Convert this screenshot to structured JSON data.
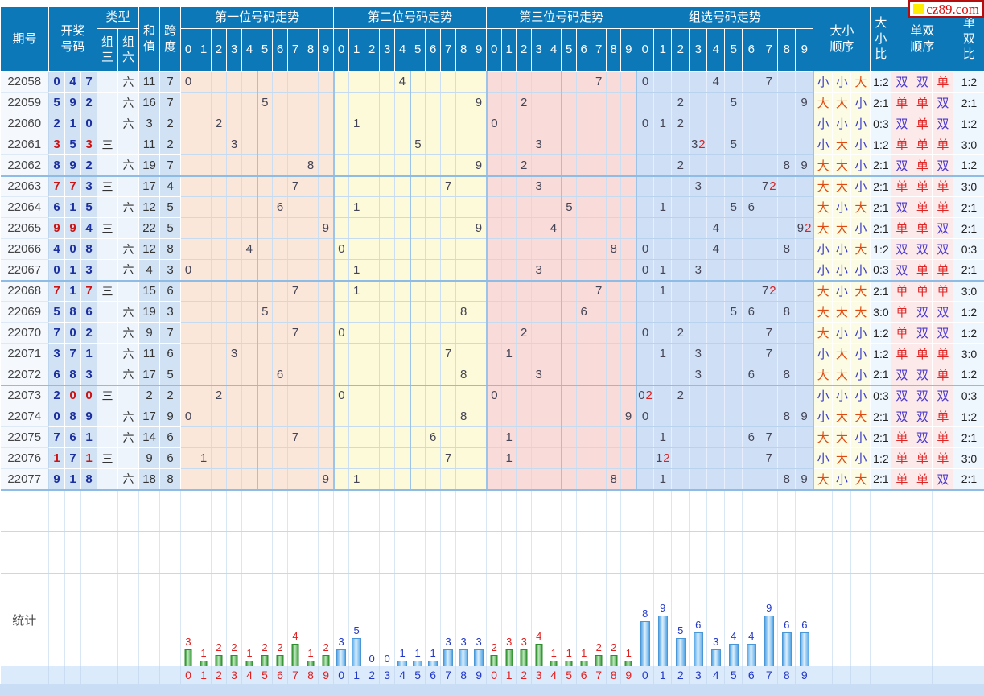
{
  "site": {
    "logo_text": "cz89.com"
  },
  "header": {
    "issue": "期号",
    "numbers": [
      "开奖",
      "号码"
    ],
    "type": "类型",
    "type_sub": [
      [
        "组",
        "三"
      ],
      [
        "组",
        "六"
      ]
    ],
    "sum": [
      "和",
      "值"
    ],
    "span": [
      "跨",
      "度"
    ],
    "sections": [
      "第一位号码走势",
      "第二位号码走势",
      "第三位号码走势",
      "组选号码走势"
    ],
    "digits": [
      "0",
      "1",
      "2",
      "3",
      "4",
      "5",
      "6",
      "7",
      "8",
      "9"
    ],
    "size_order": [
      "大小",
      "顺序"
    ],
    "size_ratio": [
      "大",
      "小",
      "比"
    ],
    "parity_order": [
      "单双",
      "顺序"
    ],
    "parity_ratio": [
      "单",
      "双",
      "比"
    ]
  },
  "stats_label": "统计",
  "rows": [
    {
      "issue": "22058",
      "n": [
        0,
        4,
        7
      ],
      "type": "六",
      "sum": 11,
      "span": 7,
      "size": [
        "小",
        "小",
        "大"
      ],
      "size_ratio": "1:2",
      "parity": [
        "双",
        "双",
        "单"
      ],
      "parity_ratio": "1:2"
    },
    {
      "issue": "22059",
      "n": [
        5,
        9,
        2
      ],
      "type": "六",
      "sum": 16,
      "span": 7,
      "size": [
        "大",
        "大",
        "小"
      ],
      "size_ratio": "2:1",
      "parity": [
        "单",
        "单",
        "双"
      ],
      "parity_ratio": "2:1"
    },
    {
      "issue": "22060",
      "n": [
        2,
        1,
        0
      ],
      "type": "六",
      "sum": 3,
      "span": 2,
      "size": [
        "小",
        "小",
        "小"
      ],
      "size_ratio": "0:3",
      "parity": [
        "双",
        "单",
        "双"
      ],
      "parity_ratio": "1:2"
    },
    {
      "issue": "22061",
      "n": [
        3,
        5,
        3
      ],
      "type": "三",
      "sum": 11,
      "span": 2,
      "size": [
        "小",
        "大",
        "小"
      ],
      "size_ratio": "1:2",
      "parity": [
        "单",
        "单",
        "单"
      ],
      "parity_ratio": "3:0"
    },
    {
      "issue": "22062",
      "n": [
        8,
        9,
        2
      ],
      "type": "六",
      "sum": 19,
      "span": 7,
      "size": [
        "大",
        "大",
        "小"
      ],
      "size_ratio": "2:1",
      "parity": [
        "双",
        "单",
        "双"
      ],
      "parity_ratio": "1:2"
    },
    {
      "issue": "22063",
      "n": [
        7,
        7,
        3
      ],
      "type": "三",
      "sum": 17,
      "span": 4,
      "size": [
        "大",
        "大",
        "小"
      ],
      "size_ratio": "2:1",
      "parity": [
        "单",
        "单",
        "单"
      ],
      "parity_ratio": "3:0"
    },
    {
      "issue": "22064",
      "n": [
        6,
        1,
        5
      ],
      "type": "六",
      "sum": 12,
      "span": 5,
      "size": [
        "大",
        "小",
        "大"
      ],
      "size_ratio": "2:1",
      "parity": [
        "双",
        "单",
        "单"
      ],
      "parity_ratio": "2:1"
    },
    {
      "issue": "22065",
      "n": [
        9,
        9,
        4
      ],
      "type": "三",
      "sum": 22,
      "span": 5,
      "size": [
        "大",
        "大",
        "小"
      ],
      "size_ratio": "2:1",
      "parity": [
        "单",
        "单",
        "双"
      ],
      "parity_ratio": "2:1"
    },
    {
      "issue": "22066",
      "n": [
        4,
        0,
        8
      ],
      "type": "六",
      "sum": 12,
      "span": 8,
      "size": [
        "小",
        "小",
        "大"
      ],
      "size_ratio": "1:2",
      "parity": [
        "双",
        "双",
        "双"
      ],
      "parity_ratio": "0:3"
    },
    {
      "issue": "22067",
      "n": [
        0,
        1,
        3
      ],
      "type": "六",
      "sum": 4,
      "span": 3,
      "size": [
        "小",
        "小",
        "小"
      ],
      "size_ratio": "0:3",
      "parity": [
        "双",
        "单",
        "单"
      ],
      "parity_ratio": "2:1"
    },
    {
      "issue": "22068",
      "n": [
        7,
        1,
        7
      ],
      "type": "三",
      "sum": 15,
      "span": 6,
      "size": [
        "大",
        "小",
        "大"
      ],
      "size_ratio": "2:1",
      "parity": [
        "单",
        "单",
        "单"
      ],
      "parity_ratio": "3:0"
    },
    {
      "issue": "22069",
      "n": [
        5,
        8,
        6
      ],
      "type": "六",
      "sum": 19,
      "span": 3,
      "size": [
        "大",
        "大",
        "大"
      ],
      "size_ratio": "3:0",
      "parity": [
        "单",
        "双",
        "双"
      ],
      "parity_ratio": "1:2"
    },
    {
      "issue": "22070",
      "n": [
        7,
        0,
        2
      ],
      "type": "六",
      "sum": 9,
      "span": 7,
      "size": [
        "大",
        "小",
        "小"
      ],
      "size_ratio": "1:2",
      "parity": [
        "单",
        "双",
        "双"
      ],
      "parity_ratio": "1:2"
    },
    {
      "issue": "22071",
      "n": [
        3,
        7,
        1
      ],
      "type": "六",
      "sum": 11,
      "span": 6,
      "size": [
        "小",
        "大",
        "小"
      ],
      "size_ratio": "1:2",
      "parity": [
        "单",
        "单",
        "单"
      ],
      "parity_ratio": "3:0"
    },
    {
      "issue": "22072",
      "n": [
        6,
        8,
        3
      ],
      "type": "六",
      "sum": 17,
      "span": 5,
      "size": [
        "大",
        "大",
        "小"
      ],
      "size_ratio": "2:1",
      "parity": [
        "双",
        "双",
        "单"
      ],
      "parity_ratio": "1:2"
    },
    {
      "issue": "22073",
      "n": [
        2,
        0,
        0
      ],
      "type": "三",
      "sum": 2,
      "span": 2,
      "size": [
        "小",
        "小",
        "小"
      ],
      "size_ratio": "0:3",
      "parity": [
        "双",
        "双",
        "双"
      ],
      "parity_ratio": "0:3"
    },
    {
      "issue": "22074",
      "n": [
        0,
        8,
        9
      ],
      "type": "六",
      "sum": 17,
      "span": 9,
      "size": [
        "小",
        "大",
        "大"
      ],
      "size_ratio": "2:1",
      "parity": [
        "双",
        "双",
        "单"
      ],
      "parity_ratio": "1:2"
    },
    {
      "issue": "22075",
      "n": [
        7,
        6,
        1
      ],
      "type": "六",
      "sum": 14,
      "span": 6,
      "size": [
        "大",
        "大",
        "小"
      ],
      "size_ratio": "2:1",
      "parity": [
        "单",
        "双",
        "单"
      ],
      "parity_ratio": "2:1"
    },
    {
      "issue": "22076",
      "n": [
        1,
        7,
        1
      ],
      "type": "三",
      "sum": 9,
      "span": 6,
      "size": [
        "小",
        "大",
        "小"
      ],
      "size_ratio": "1:2",
      "parity": [
        "单",
        "单",
        "单"
      ],
      "parity_ratio": "3:0"
    },
    {
      "issue": "22077",
      "n": [
        9,
        1,
        8
      ],
      "type": "六",
      "sum": 18,
      "span": 8,
      "size": [
        "大",
        "小",
        "大"
      ],
      "size_ratio": "2:1",
      "parity": [
        "单",
        "单",
        "双"
      ],
      "parity_ratio": "2:1"
    }
  ],
  "chart_data": [
    {
      "type": "bar",
      "title": "第一位号码走势 统计",
      "categories": [
        "0",
        "1",
        "2",
        "3",
        "4",
        "5",
        "6",
        "7",
        "8",
        "9"
      ],
      "values": [
        3,
        1,
        2,
        2,
        1,
        2,
        2,
        4,
        1,
        2
      ],
      "bar_color": "#3d9e3d",
      "label_color": "#e01f1f",
      "ylim": [
        0,
        9
      ],
      "grid": false
    },
    {
      "type": "bar",
      "title": "第二位号码走势 统计",
      "categories": [
        "0",
        "1",
        "2",
        "3",
        "4",
        "5",
        "6",
        "7",
        "8",
        "9"
      ],
      "values": [
        3,
        5,
        0,
        0,
        1,
        1,
        1,
        3,
        3,
        3
      ],
      "bar_color": "#58a8e8",
      "label_color": "#2238c8",
      "ylim": [
        0,
        9
      ],
      "grid": false
    },
    {
      "type": "bar",
      "title": "第三位号码走势 统计",
      "categories": [
        "0",
        "1",
        "2",
        "3",
        "4",
        "5",
        "6",
        "7",
        "8",
        "9"
      ],
      "values": [
        2,
        3,
        3,
        4,
        1,
        1,
        1,
        2,
        2,
        1
      ],
      "bar_color": "#3d9e3d",
      "label_color": "#e01f1f",
      "ylim": [
        0,
        9
      ],
      "grid": false
    },
    {
      "type": "bar",
      "title": "组选号码走势 统计",
      "categories": [
        "0",
        "1",
        "2",
        "3",
        "4",
        "5",
        "6",
        "7",
        "8",
        "9"
      ],
      "values": [
        8,
        9,
        5,
        6,
        3,
        4,
        4,
        9,
        6,
        6
      ],
      "bar_color": "#58a8e8",
      "label_color": "#2238c8",
      "ylim": [
        0,
        9
      ],
      "grid": false
    }
  ],
  "colors": {
    "header_bg": "#0d78b8",
    "pos1_bg": "#fbe6da",
    "pos2_bg": "#fcfad8",
    "pos3_bg": "#f9dcda",
    "group_bg": "#cfe0f6",
    "number_blue": "#1c2f9e",
    "number_red": "#cc1414",
    "big_red": "#e04a10",
    "small_blue": "#3c3cc8",
    "odd_red": "#e02525",
    "even_blue": "#4836cc",
    "green_bar": "#3d9e3d",
    "blue_bar": "#58a8e8",
    "logo_red": "#d90f0f",
    "logo_yellow": "#ffee00"
  }
}
